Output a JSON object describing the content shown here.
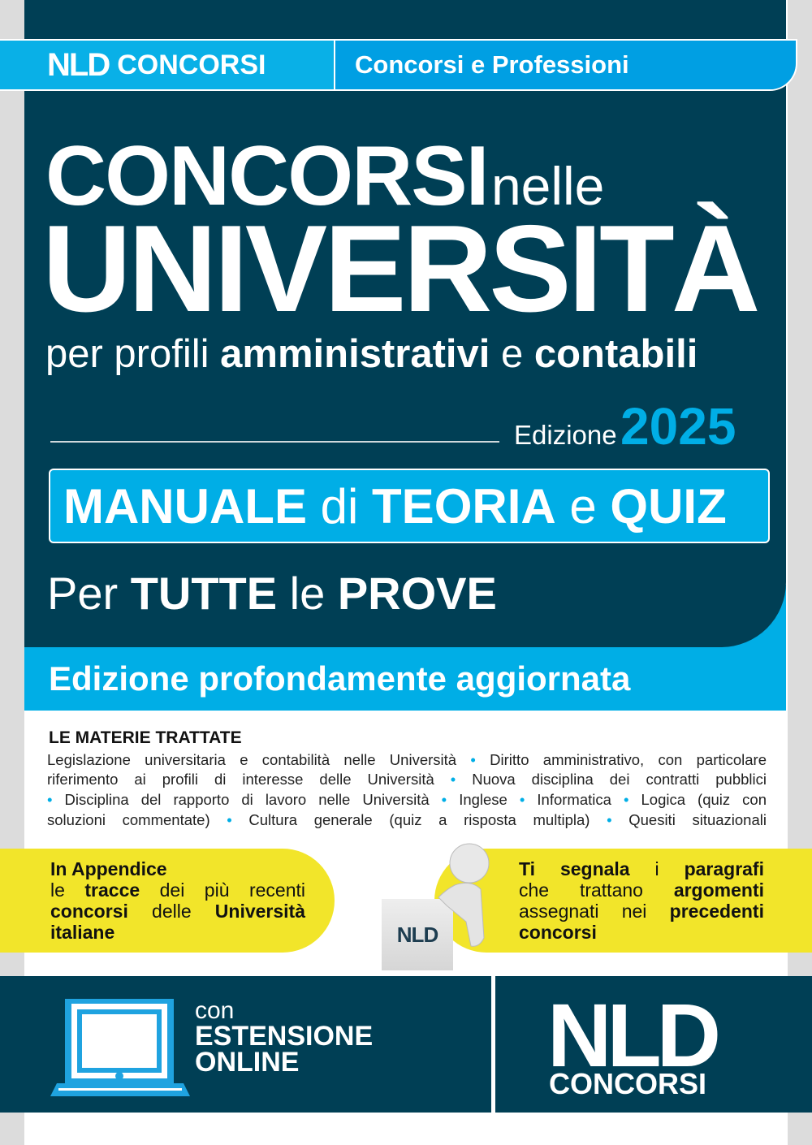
{
  "header": {
    "logo_mark": "NLD",
    "logo_word": "CONCORSI",
    "series": "Concorsi e Professioni"
  },
  "title": {
    "line1_bold": "CONCORSI",
    "line1_light": "nelle",
    "line2": "UNIVERSITÀ",
    "subtitle_a": "per profili ",
    "subtitle_b": "amministrativi",
    "subtitle_c": " e ",
    "subtitle_d": "contabili"
  },
  "edition": {
    "label": "Edizione",
    "year": "2025"
  },
  "manual": {
    "a": "MANUALE",
    "b": " di ",
    "c": "TEORIA",
    "d": " e ",
    "e": "QUIZ"
  },
  "prove": {
    "a": "Per ",
    "b": "TUTTE",
    "c": " le ",
    "d": "PROVE"
  },
  "banner": "Edizione profondamente aggiornata",
  "materie": {
    "heading": "LE MATERIE TRATTATE",
    "lines": [
      "Legislazione universitaria e contabilità nelle Università • Diritto amministrativo, con particolare",
      "riferimento ai profili di interesse delle Università • Nuova disciplina dei contratti pubblici",
      "• Disciplina del rapporto di lavoro nelle Università • Inglese • Informatica • Logica (quiz con",
      "soluzioni commentate) • Cultura generale (quiz a risposta multipla) • Quesiti situazionali"
    ]
  },
  "appendix": {
    "l1": "In Appendice",
    "l2a": "le ",
    "l2b": "tracce",
    "l2c": " dei più recenti",
    "l3a": "concorsi",
    "l3b": " delle ",
    "l3c": "Università",
    "l4": "italiane"
  },
  "segnala": {
    "l1a": "Ti segnala",
    "l1b": " i ",
    "l1c": "paragrafi",
    "l2a": "che trattano ",
    "l2b": "argomenti",
    "l3a": "assegnati nei ",
    "l3b": "precedenti",
    "l4": "concorsi",
    "sign": "NLD"
  },
  "online": {
    "con": "con",
    "l1": "ESTENSIONE",
    "l2": "ONLINE"
  },
  "publisher": {
    "mark": "NLD",
    "word": "CONCORSI"
  },
  "colors": {
    "navy": "#003f55",
    "cyan": "#00aee6",
    "yellow": "#f2e52a"
  }
}
